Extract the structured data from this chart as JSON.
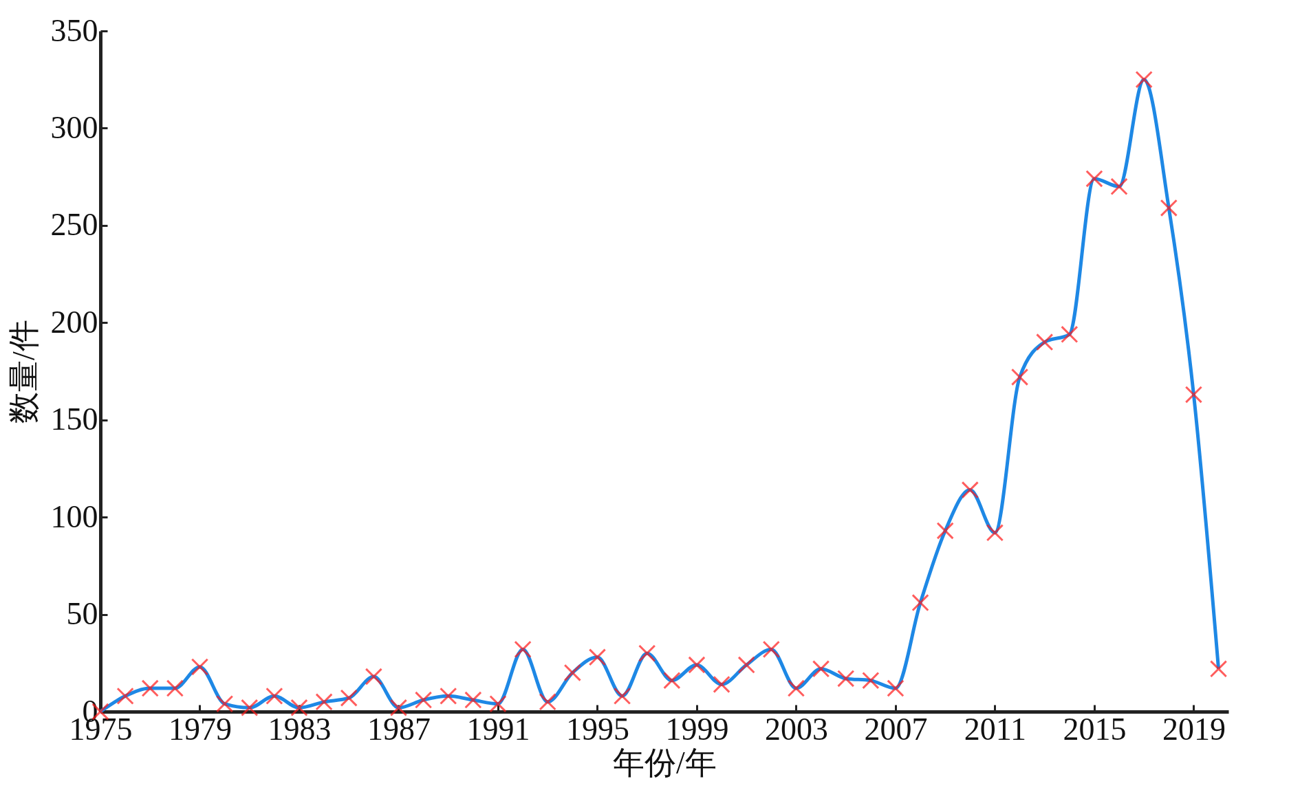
{
  "chart_data": {
    "type": "line",
    "xlabel": "年份/年",
    "ylabel": "数量/件",
    "x": [
      1975,
      1976,
      1977,
      1978,
      1979,
      1980,
      1981,
      1982,
      1983,
      1984,
      1985,
      1986,
      1987,
      1988,
      1989,
      1990,
      1991,
      1992,
      1993,
      1994,
      1995,
      1996,
      1997,
      1998,
      1999,
      2000,
      2001,
      2002,
      2003,
      2004,
      2005,
      2006,
      2007,
      2008,
      2009,
      2010,
      2011,
      2012,
      2013,
      2014,
      2015,
      2016,
      2017,
      2018,
      2019,
      2020
    ],
    "series": [
      {
        "color": "#1e88e5",
        "values": [
          0,
          8,
          12,
          12,
          23,
          4,
          2,
          8,
          2,
          5,
          7,
          18,
          2,
          6,
          8,
          6,
          4,
          32,
          5,
          20,
          28,
          8,
          30,
          16,
          24,
          14,
          24,
          32,
          12,
          22,
          17,
          16,
          12,
          56,
          93,
          114,
          92,
          172,
          190,
          194,
          274,
          270,
          325,
          259,
          163,
          22
        ]
      },
      {
        "type": "scatter",
        "color": "#ff1a1a",
        "values": [
          0,
          8,
          12,
          12,
          23,
          4,
          2,
          8,
          2,
          5,
          7,
          18,
          2,
          6,
          8,
          6,
          4,
          32,
          5,
          20,
          28,
          8,
          30,
          16,
          24,
          14,
          24,
          32,
          12,
          22,
          17,
          16,
          12,
          56,
          93,
          114,
          92,
          172,
          190,
          194,
          274,
          270,
          325,
          259,
          163,
          22
        ]
      }
    ],
    "marker": "cross",
    "line_style": "solid",
    "xlim": [
      1975,
      2020.4
    ],
    "xticks": [
      1975,
      1979,
      1983,
      1987,
      1991,
      1995,
      1999,
      2003,
      2007,
      2011,
      2015,
      2019
    ],
    "ylim": [
      0,
      350
    ],
    "yticks": [
      0,
      50,
      100,
      150,
      200,
      250,
      300,
      350
    ]
  }
}
